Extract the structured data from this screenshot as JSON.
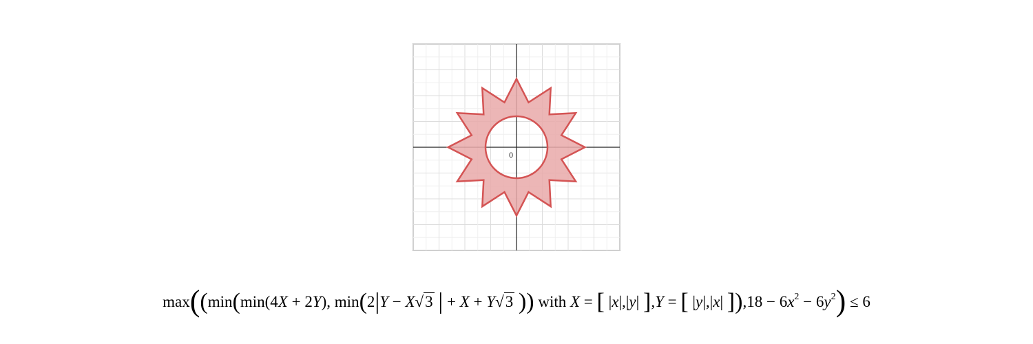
{
  "graph": {
    "origin_label": "0",
    "x_range": [
      -4,
      4
    ],
    "y_range": [
      -4,
      4
    ],
    "grid": true,
    "region": {
      "fill_color": "#e9a9a9",
      "stroke_color": "#d45454",
      "star_points": 12,
      "outer_radius": 2.65,
      "inner_radius": 1.8,
      "hole_radius": 1.2
    }
  },
  "formula": {
    "max": "max",
    "min": "min",
    "with": "with",
    "X": "X",
    "Y": "Y",
    "sqrt3": "3",
    "c4": "4",
    "c2": "2",
    "c18": "18",
    "c6": "6",
    "x": "x",
    "y": "y",
    "exp2": "2",
    "le": "≤",
    "rhs": "6"
  }
}
